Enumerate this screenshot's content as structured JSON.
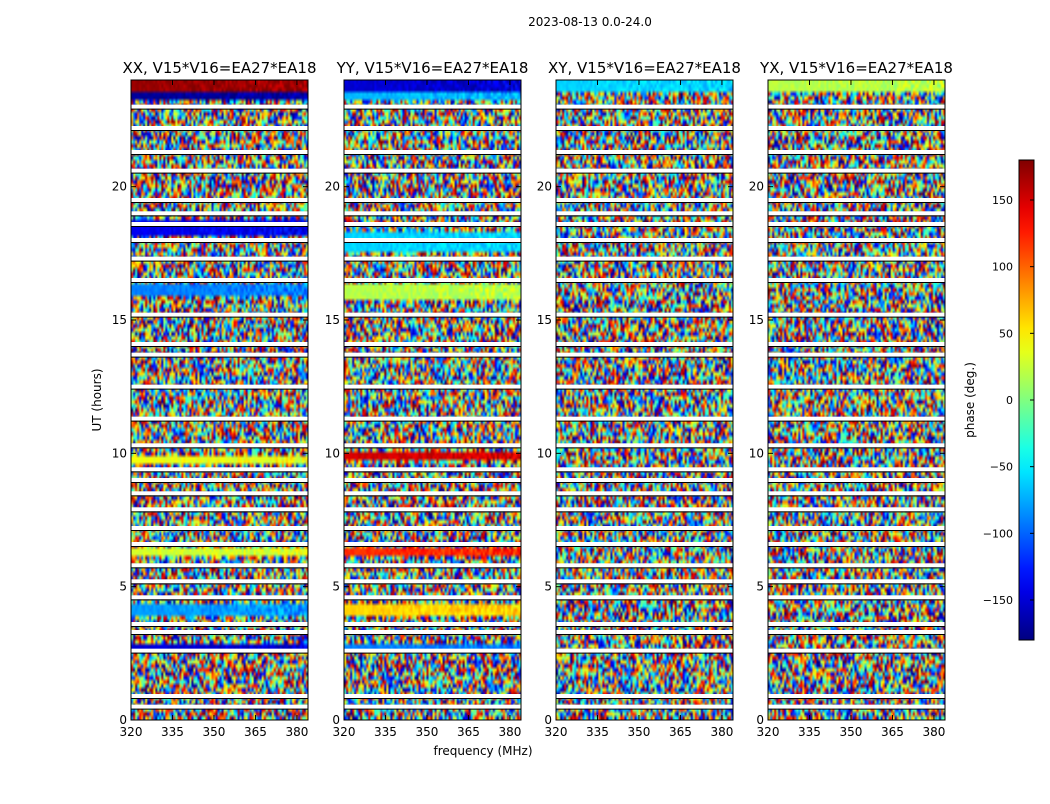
{
  "chart_data": {
    "type": "heatmap",
    "suptitle": "2023-08-13 0.0-24.0",
    "xlabel": "frequency (MHz)",
    "ylabel": "UT (hours)",
    "xlim": [
      320,
      384
    ],
    "ylim": [
      0,
      24
    ],
    "xticks": [
      320,
      335,
      350,
      365,
      380
    ],
    "yticks": [
      0,
      5,
      10,
      15,
      20
    ],
    "colorbar": {
      "label": "phase (deg.)",
      "range": [
        -180,
        180
      ],
      "ticks": [
        150,
        100,
        50,
        0,
        -50,
        -100,
        -150
      ],
      "tick_labels": [
        "150",
        "100",
        "50",
        "0",
        "−50",
        "−100",
        "−150"
      ],
      "colormap": [
        "#000080",
        "#0000ff",
        "#0080ff",
        "#00ffff",
        "#80ff80",
        "#ffff00",
        "#ff8000",
        "#ff0000",
        "#800000"
      ]
    },
    "panels": [
      {
        "title": "XX, V15*V16=EA27*EA18",
        "coherent_bands": [
          {
            "t0": 23.5,
            "t1": 24.0,
            "phase": 170
          },
          {
            "t0": 23.3,
            "t1": 23.6,
            "phase": -170
          },
          {
            "t0": 18.2,
            "t1": 18.7,
            "phase": -140
          },
          {
            "t0": 15.9,
            "t1": 16.4,
            "phase": -90
          },
          {
            "t0": 9.6,
            "t1": 9.9,
            "phase": 40
          },
          {
            "t0": 6.2,
            "t1": 6.5,
            "phase": 30
          },
          {
            "t0": 3.9,
            "t1": 4.3,
            "phase": -80
          },
          {
            "t0": 2.5,
            "t1": 2.8,
            "phase": -150
          }
        ]
      },
      {
        "title": "YY, V15*V16=EA27*EA18",
        "coherent_bands": [
          {
            "t0": 23.5,
            "t1": 24.0,
            "phase": -150
          },
          {
            "t0": 23.2,
            "t1": 23.5,
            "phase": -70
          },
          {
            "t0": 17.6,
            "t1": 18.3,
            "phase": -60
          },
          {
            "t0": 15.8,
            "t1": 16.3,
            "phase": 20
          },
          {
            "t0": 9.7,
            "t1": 10.0,
            "phase": 150
          },
          {
            "t0": 6.2,
            "t1": 6.5,
            "phase": 120
          },
          {
            "t0": 3.9,
            "t1": 4.3,
            "phase": 60
          },
          {
            "t0": 2.6,
            "t1": 2.9,
            "phase": -90
          }
        ]
      },
      {
        "title": "XY, V15*V16=EA27*EA18",
        "coherent_bands": [
          {
            "t0": 23.5,
            "t1": 24.0,
            "phase": -60
          }
        ]
      },
      {
        "title": "YX, V15*V16=EA27*EA18",
        "coherent_bands": [
          {
            "t0": 23.5,
            "t1": 24.0,
            "phase": 20
          }
        ]
      }
    ],
    "gap_rows_hours": [
      0.5,
      0.9,
      2.6,
      3.3,
      3.6,
      4.6,
      5.2,
      5.8,
      6.6,
      7.2,
      7.9,
      8.5,
      9.0,
      9.4,
      10.3,
      11.3,
      12.5,
      13.7,
      14.1,
      15.2,
      16.5,
      17.3,
      18.0,
      18.6,
      19.0,
      19.5,
      20.6,
      21.3,
      22.2,
      23.0
    ]
  }
}
